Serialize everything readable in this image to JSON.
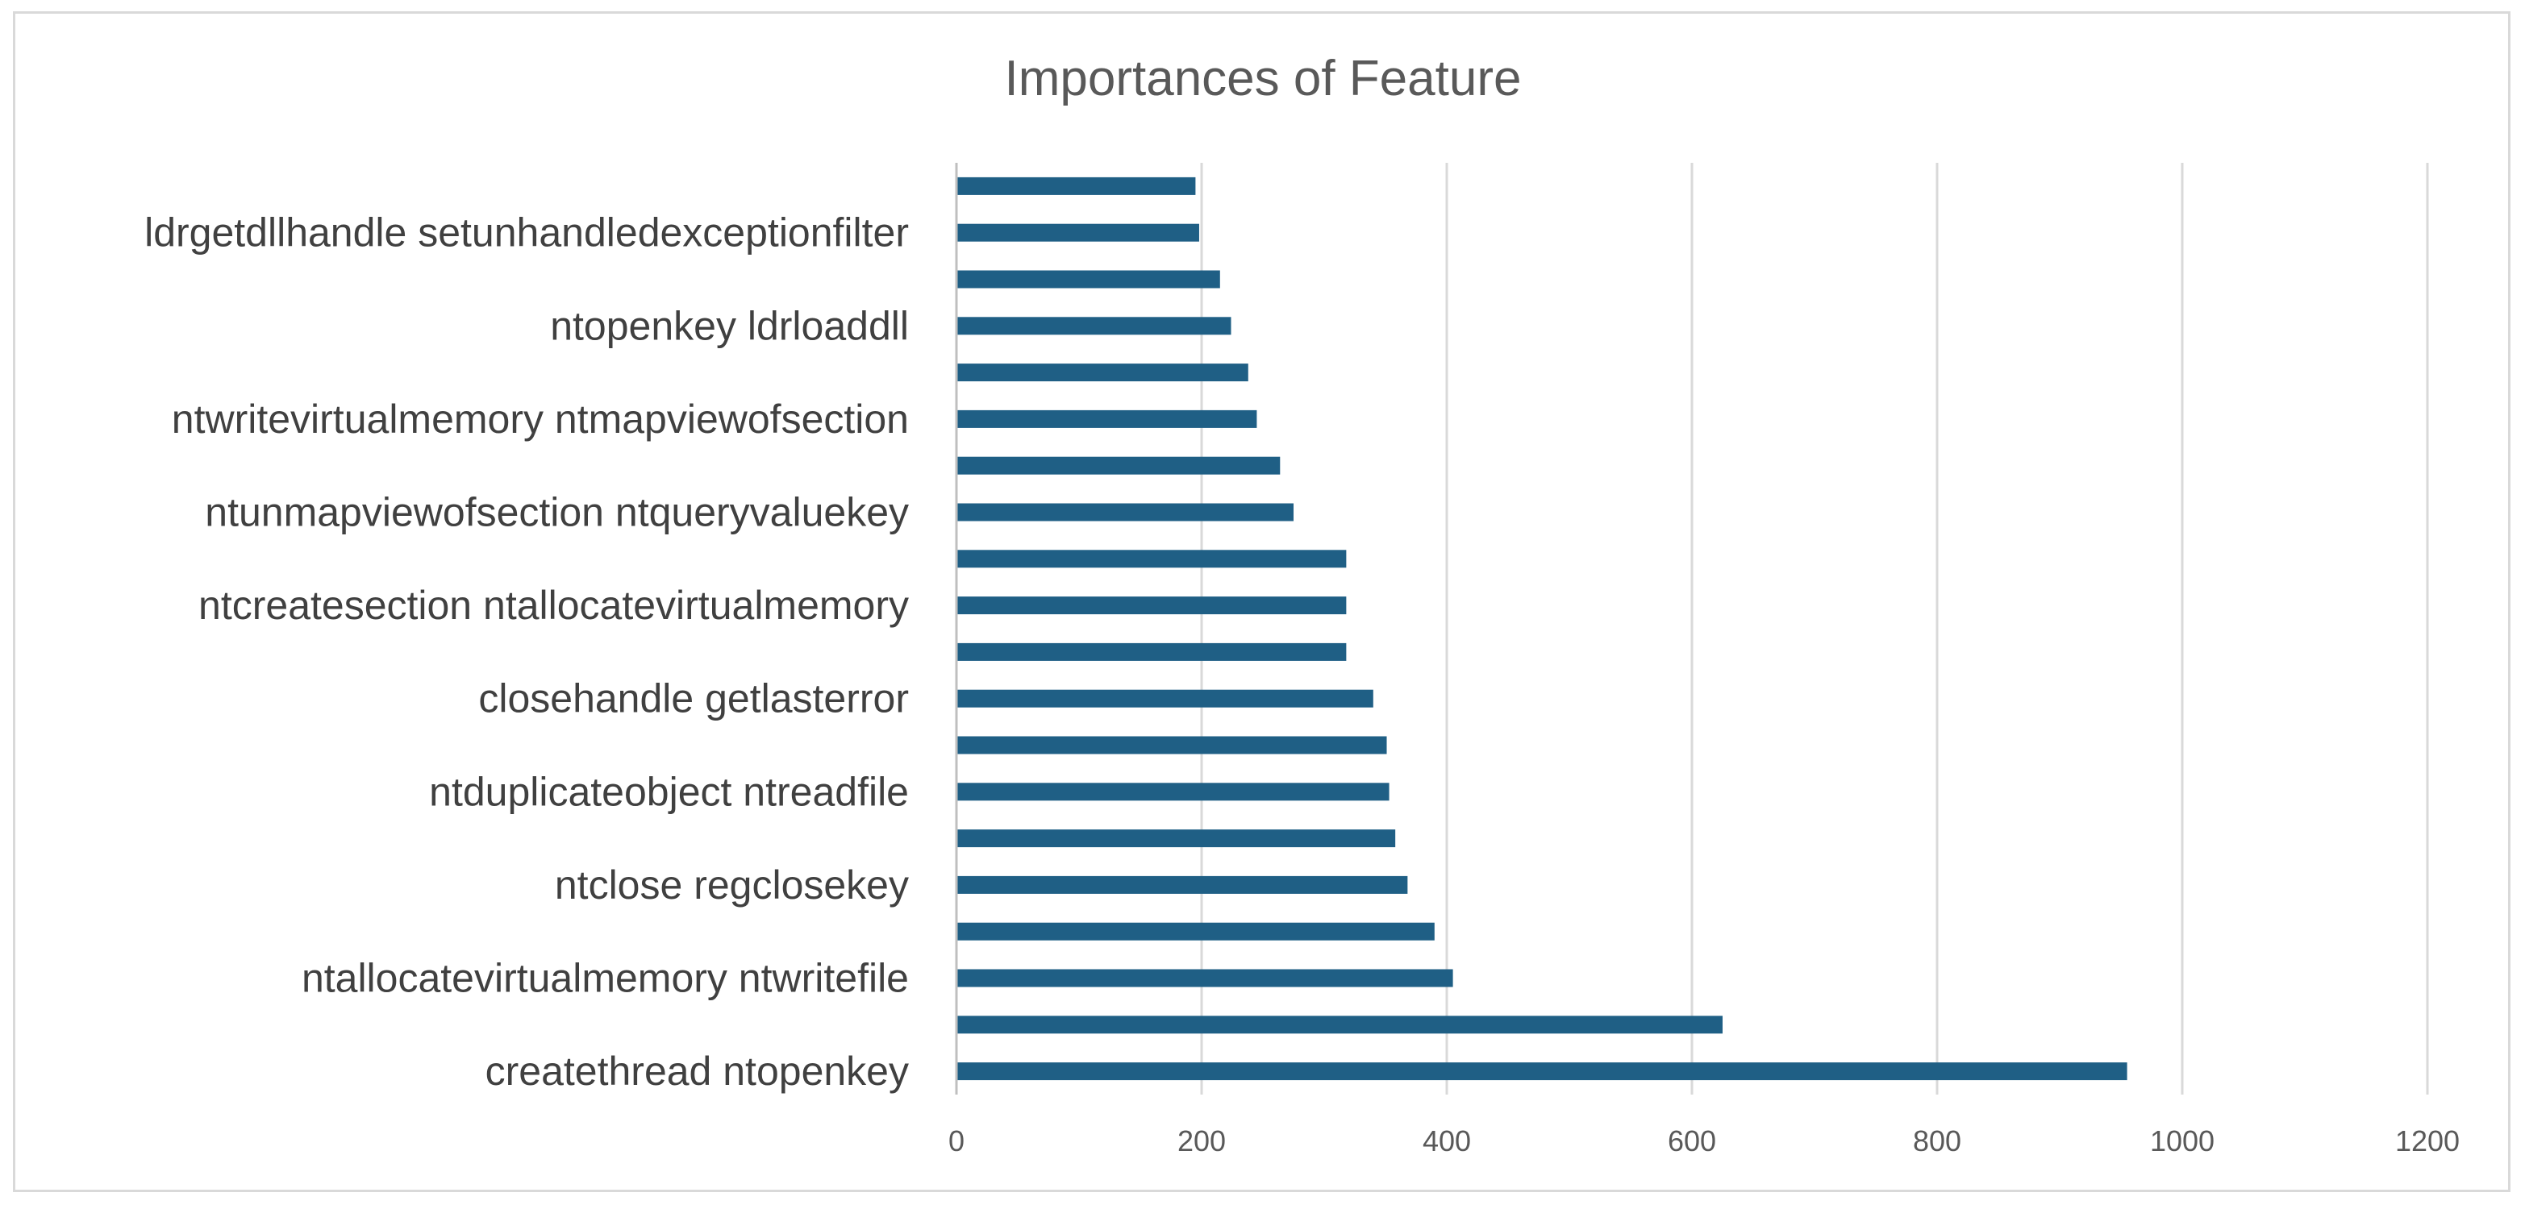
{
  "chart_data": {
    "type": "bar",
    "orientation": "horizontal",
    "title": "Importances of Feature",
    "xlabel": "",
    "ylabel": "",
    "xlim": [
      0,
      1200
    ],
    "x_ticks": [
      0,
      200,
      400,
      600,
      800,
      1000,
      1200
    ],
    "grid": true,
    "legend": "none",
    "bar_color": "#1f5f85",
    "categories": [
      "createthread ntopenkey",
      "",
      "ntallocatevirtualmemory ntwritefile",
      "",
      "ntclose regclosekey",
      "",
      "ntduplicateobject ntreadfile",
      "",
      "closehandle getlasterror",
      "",
      "ntcreatesection ntallocatevirtualmemory",
      "",
      "ntunmapviewofsection ntqueryvaluekey",
      "",
      "ntwritevirtualmemory ntmapviewofsection",
      "",
      "ntopenkey ldrloaddll",
      "",
      "ldrgetdllhandle setunhandledexceptionfilter",
      ""
    ],
    "values": [
      955,
      625,
      405,
      390,
      368,
      358,
      353,
      351,
      340,
      318,
      318,
      318,
      275,
      264,
      245,
      238,
      224,
      215,
      198,
      195
    ]
  }
}
